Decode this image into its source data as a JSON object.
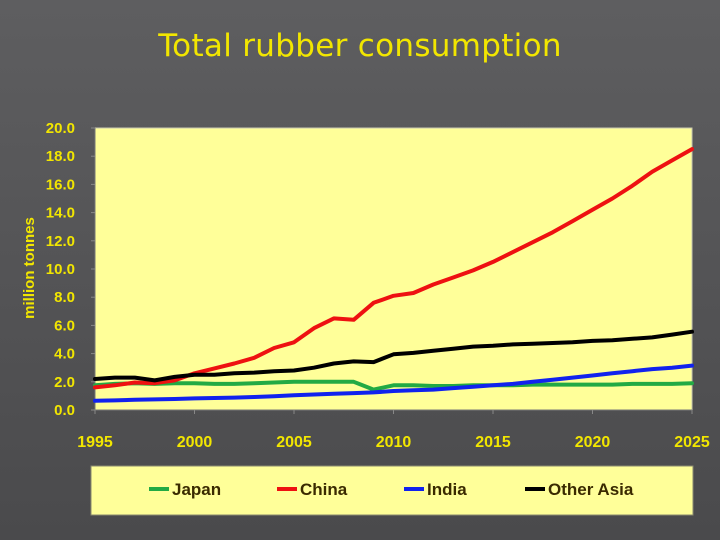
{
  "title": "Total rubber consumption",
  "colors": {
    "background": "#555557",
    "plot_area": "#ffff99",
    "text_accent": "#f2e600",
    "Japan": "#22aa44",
    "China": "#ee1111",
    "India": "#1122ee",
    "Other Asia": "#000000"
  },
  "chart_data": {
    "type": "line",
    "title": "Total rubber consumption",
    "xlabel": "",
    "ylabel": "million tonnes",
    "xlim": [
      1995,
      2025
    ],
    "ylim": [
      0,
      20
    ],
    "x_ticks": [
      "1995",
      "2000",
      "2005",
      "2010",
      "2015",
      "2020",
      "2025"
    ],
    "y_ticks": [
      "0.0",
      "2.0",
      "4.0",
      "6.0",
      "8.0",
      "10.0",
      "12.0",
      "14.0",
      "16.0",
      "18.0",
      "20.0"
    ],
    "grid": false,
    "legend_position": "bottom",
    "x": [
      1995,
      1996,
      1997,
      1998,
      1999,
      2000,
      2001,
      2002,
      2003,
      2004,
      2005,
      2006,
      2007,
      2008,
      2009,
      2010,
      2011,
      2012,
      2013,
      2014,
      2015,
      2016,
      2017,
      2018,
      2019,
      2020,
      2021,
      2022,
      2023,
      2024,
      2025
    ],
    "series": [
      {
        "name": "Japan",
        "values": [
          1.75,
          1.85,
          1.9,
          1.85,
          1.9,
          1.9,
          1.85,
          1.85,
          1.9,
          1.95,
          2.0,
          2.0,
          2.0,
          2.0,
          1.45,
          1.75,
          1.75,
          1.7,
          1.7,
          1.75,
          1.75,
          1.75,
          1.8,
          1.8,
          1.8,
          1.8,
          1.8,
          1.85,
          1.85,
          1.85,
          1.9
        ]
      },
      {
        "name": "China",
        "values": [
          1.6,
          1.75,
          1.95,
          1.9,
          2.1,
          2.6,
          2.95,
          3.3,
          3.7,
          4.4,
          4.8,
          5.8,
          6.5,
          6.4,
          7.6,
          8.1,
          8.3,
          8.9,
          9.4,
          9.9,
          10.5,
          11.2,
          11.9,
          12.6,
          13.4,
          14.2,
          15.0,
          15.9,
          16.9,
          17.7,
          18.5
        ]
      },
      {
        "name": "India",
        "values": [
          0.65,
          0.68,
          0.72,
          0.75,
          0.78,
          0.82,
          0.85,
          0.88,
          0.92,
          0.98,
          1.05,
          1.1,
          1.15,
          1.2,
          1.25,
          1.35,
          1.4,
          1.45,
          1.55,
          1.65,
          1.75,
          1.85,
          2.0,
          2.15,
          2.3,
          2.45,
          2.6,
          2.75,
          2.9,
          3.0,
          3.15
        ]
      },
      {
        "name": "Other Asia",
        "values": [
          2.2,
          2.3,
          2.3,
          2.1,
          2.35,
          2.5,
          2.5,
          2.6,
          2.65,
          2.75,
          2.8,
          3.0,
          3.3,
          3.45,
          3.4,
          3.95,
          4.05,
          4.2,
          4.35,
          4.5,
          4.55,
          4.65,
          4.7,
          4.75,
          4.8,
          4.9,
          4.95,
          5.05,
          5.15,
          5.35,
          5.55
        ]
      }
    ]
  }
}
